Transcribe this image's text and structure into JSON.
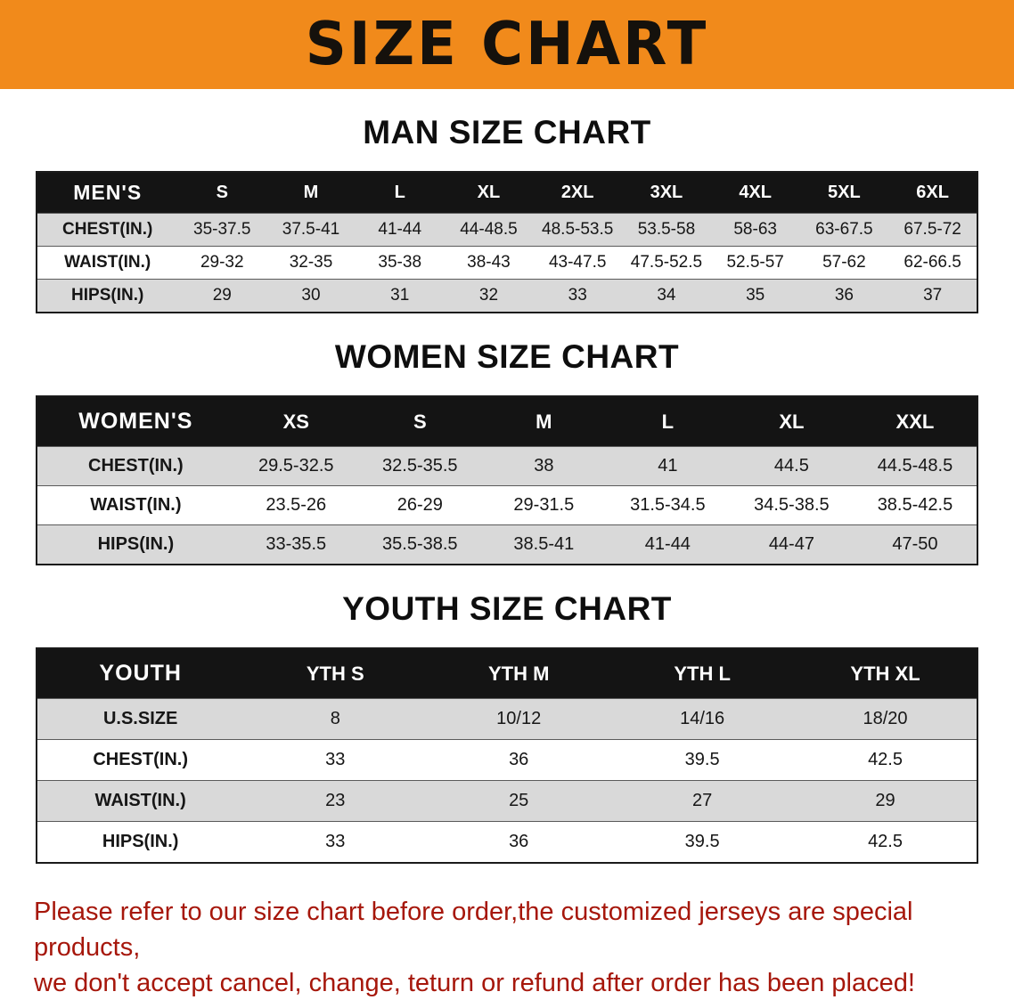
{
  "banner": {
    "title": "SIZE CHART"
  },
  "colors": {
    "banner_bg": "#f18a1b",
    "table_header_bg": "#141414",
    "row_shade": "#d9d9d9",
    "disclaimer_text": "#a6170b"
  },
  "sections": [
    {
      "id": "men",
      "heading": "MAN SIZE CHART",
      "table": {
        "header": [
          "MEN'S",
          "S",
          "M",
          "L",
          "XL",
          "2XL",
          "3XL",
          "4XL",
          "5XL",
          "6XL"
        ],
        "rows": [
          [
            "CHEST(IN.)",
            "35-37.5",
            "37.5-41",
            "41-44",
            "44-48.5",
            "48.5-53.5",
            "53.5-58",
            "58-63",
            "63-67.5",
            "67.5-72"
          ],
          [
            "WAIST(IN.)",
            "29-32",
            "32-35",
            "35-38",
            "38-43",
            "43-47.5",
            "47.5-52.5",
            "52.5-57",
            "57-62",
            "62-66.5"
          ],
          [
            "HIPS(IN.)",
            "29",
            "30",
            "31",
            "32",
            "33",
            "34",
            "35",
            "36",
            "37"
          ]
        ]
      }
    },
    {
      "id": "women",
      "heading": "WOMEN SIZE CHART",
      "table": {
        "header": [
          "WOMEN'S",
          "XS",
          "S",
          "M",
          "L",
          "XL",
          "XXL"
        ],
        "rows": [
          [
            "CHEST(IN.)",
            "29.5-32.5",
            "32.5-35.5",
            "38",
            "41",
            "44.5",
            "44.5-48.5"
          ],
          [
            "WAIST(IN.)",
            "23.5-26",
            "26-29",
            "29-31.5",
            "31.5-34.5",
            "34.5-38.5",
            "38.5-42.5"
          ],
          [
            "HIPS(IN.)",
            "33-35.5",
            "35.5-38.5",
            "38.5-41",
            "41-44",
            "44-47",
            "47-50"
          ]
        ]
      }
    },
    {
      "id": "youth",
      "heading": "YOUTH SIZE CHART",
      "table": {
        "header": [
          "YOUTH",
          "YTH S",
          "YTH M",
          "YTH L",
          "YTH XL"
        ],
        "rows": [
          [
            "U.S.SIZE",
            "8",
            "10/12",
            "14/16",
            "18/20"
          ],
          [
            "CHEST(IN.)",
            "33",
            "36",
            "39.5",
            "42.5"
          ],
          [
            "WAIST(IN.)",
            "23",
            "25",
            "27",
            "29"
          ],
          [
            "HIPS(IN.)",
            "33",
            "36",
            "39.5",
            "42.5"
          ]
        ]
      }
    }
  ],
  "disclaimer": {
    "line1": "Please refer to our size chart before order,the customized jerseys are special products,",
    "line2": "we don't accept cancel, change, teturn or refund after order has been placed!"
  }
}
